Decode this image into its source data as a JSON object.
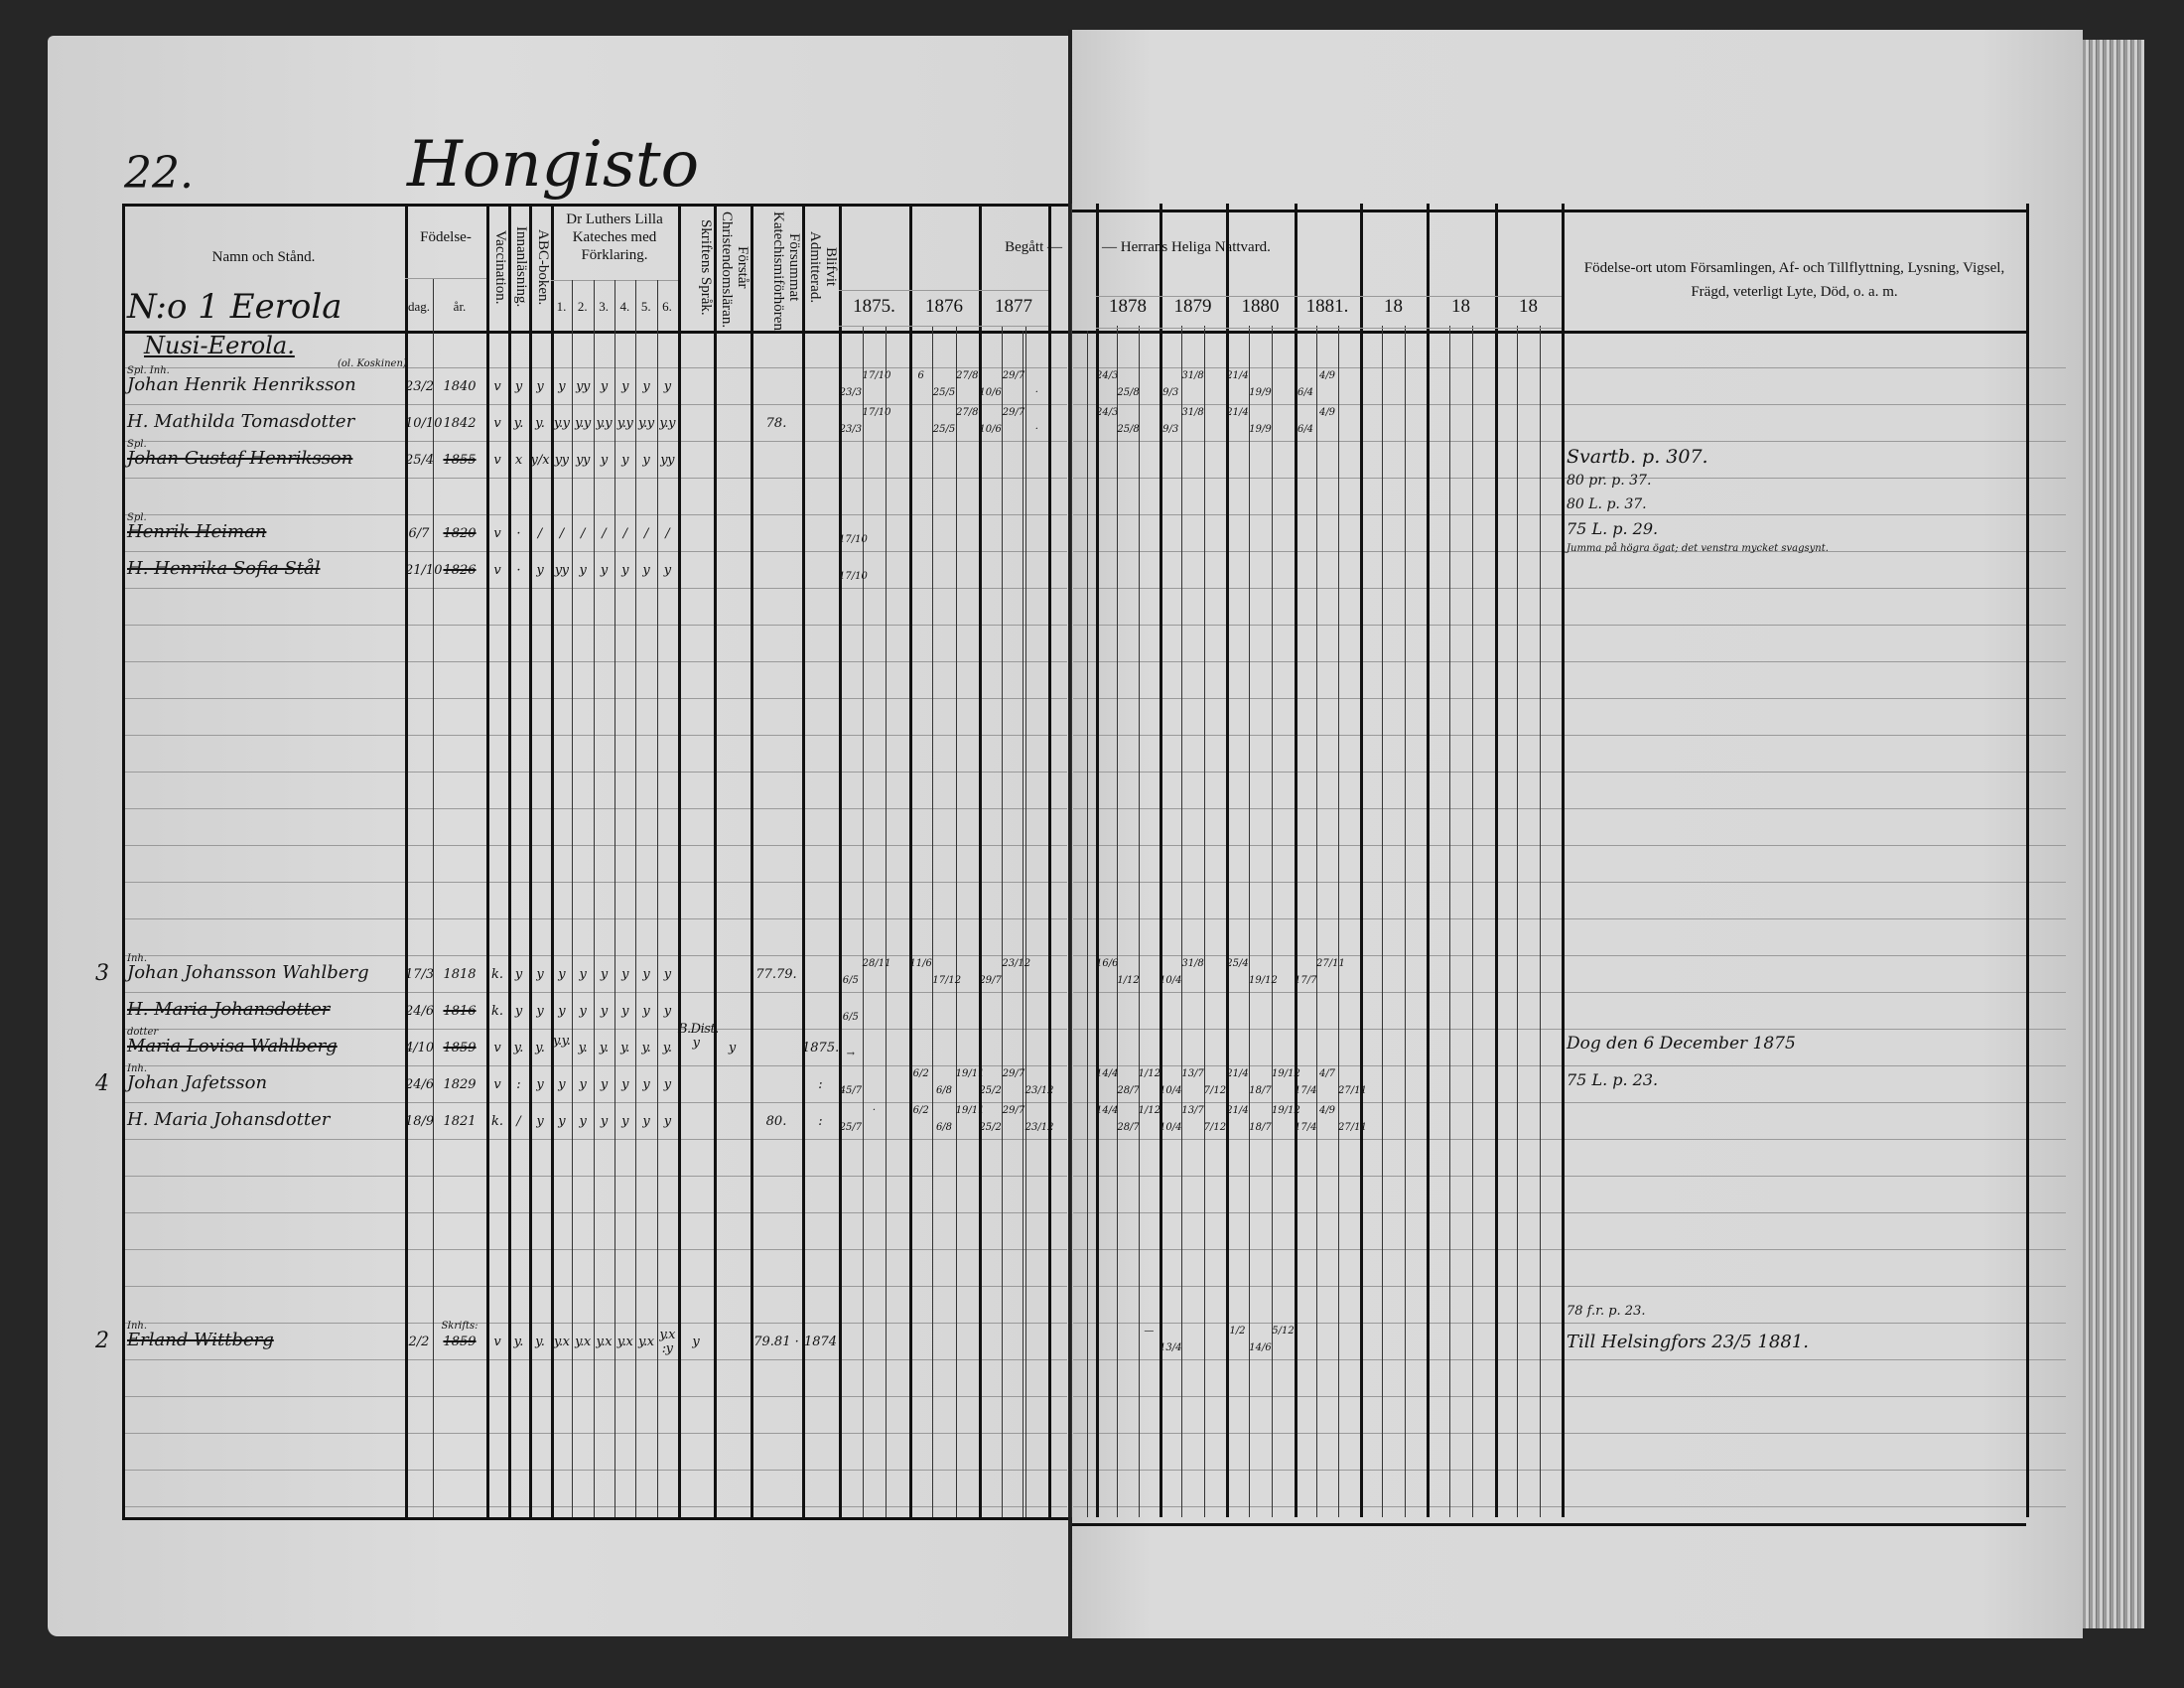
{
  "heading": {
    "page_number": "22.",
    "village": "Hongisto",
    "farm": "N:o 1 Eerola",
    "section": "Nusi-Eerola."
  },
  "columns": {
    "name": "Namn och Stånd.",
    "birth": "Födelse-",
    "birth_day": "dag.",
    "birth_year": "år.",
    "vaccination": "Vaccination.",
    "reading": "Innanläsning.",
    "abc": "ABC-boken.",
    "catechism": "Dr Luthers Lilla Kateches med Förklaring.",
    "catechism_parts": [
      "1.",
      "2.",
      "3.",
      "4.",
      "5.",
      "6."
    ],
    "scripture": "Skriftens Språk.",
    "understands": "Förstår Christendomsläran.",
    "missed": "Försummat Katechismiförhören.",
    "admitted": "Blifvit Admitterad.",
    "communion_left": "Begått —",
    "communion_right": "— Herrans Heliga Nattvard.",
    "years": [
      "1875.",
      "1876",
      "1877",
      "1878",
      "1879",
      "1880",
      "1881.",
      "18",
      "18",
      "18"
    ],
    "remarks": "Födelse-ort utom Församlingen, Af- och Tillflyttning, Lysning, Vigsel, Frägd, veterligt Lyte, Död, o. a. m."
  },
  "entries": [
    {
      "prefix": "Spl. Inh.",
      "name": "Johan Henrik Henriksson",
      "name_note": "(ol. Koskinen)",
      "margin_no": "",
      "struck": false,
      "dag": "23/2",
      "ar": "1840",
      "ar_note": "",
      "vaccination": "v",
      "reading": "y",
      "abc": "y",
      "luther": [
        "y",
        "yy",
        "y",
        "y",
        "y",
        "y"
      ],
      "scripture": "",
      "understands": "",
      "missed": "",
      "admitted": "",
      "communion": {
        "1875": [
          "23/3",
          "17/10",
          ""
        ],
        "1876": [
          "6",
          "25/5",
          "27/8"
        ],
        "1877": [
          "10/6",
          "29/7",
          "·"
        ],
        "1878": [
          "24/3",
          "25/8",
          ""
        ],
        "1879": [
          "9/3",
          "31/8",
          ""
        ],
        "1880": [
          "21/4",
          "19/9",
          ""
        ],
        "1881": [
          "6/4",
          "4/9",
          ""
        ]
      }
    },
    {
      "prefix": "",
      "name": "H. Mathilda Tomasdotter",
      "name_note": "",
      "margin_no": "",
      "struck": false,
      "dag": "10/10",
      "ar": "1842",
      "ar_note": "",
      "vaccination": "v",
      "reading": "y.",
      "abc": "y.",
      "luther": [
        "y.y",
        "y.y",
        "y.y",
        "y.y",
        "y.y",
        "y.y"
      ],
      "scripture": "",
      "understands": "",
      "missed": "78.",
      "admitted": "",
      "communion": {
        "1875": [
          "23/3",
          "17/10",
          ""
        ],
        "1876": [
          "",
          "25/5",
          "27/8"
        ],
        "1877": [
          "10/6",
          "29/7",
          "·"
        ],
        "1878": [
          "24/3",
          "25/8",
          ""
        ],
        "1879": [
          "9/3",
          "31/8",
          ""
        ],
        "1880": [
          "21/4",
          "19/9",
          ""
        ],
        "1881": [
          "6/4",
          "4/9",
          ""
        ]
      }
    },
    {
      "prefix": "Spl.",
      "name": "Johan Gustaf Henriksson",
      "name_note": "",
      "margin_no": "",
      "struck": true,
      "dag": "25/4",
      "ar": "1855",
      "ar_note": "",
      "vaccination": "v",
      "reading": "x",
      "abc": "y/x",
      "luther": [
        "yy",
        "yy",
        "y",
        "y",
        "y",
        "yy"
      ],
      "scripture": "",
      "understands": "",
      "missed": "",
      "admitted": "",
      "communion": {}
    },
    {
      "prefix": "Spl.",
      "name": "Henrik Heiman",
      "name_note": "",
      "margin_no": "",
      "struck": true,
      "dag": "6/7",
      "ar": "1820",
      "ar_note": "",
      "vaccination": "v",
      "reading": "·",
      "abc": "/",
      "luther": [
        "/",
        "/",
        "/",
        "/",
        "/",
        "/"
      ],
      "scripture": "",
      "understands": "",
      "missed": "",
      "admitted": "",
      "communion": {
        "1875": [
          "17/10",
          "",
          ""
        ]
      }
    },
    {
      "prefix": "",
      "name": "H. Henrika Sofia Stål",
      "name_note": "",
      "margin_no": "",
      "struck": true,
      "dag": "21/10",
      "ar": "1826",
      "ar_note": "",
      "vaccination": "v",
      "reading": "·",
      "abc": "y",
      "luther": [
        "yy",
        "y",
        "y",
        "y",
        "y",
        "y"
      ],
      "scripture": "",
      "understands": "",
      "missed": "",
      "admitted": "",
      "communion": {
        "1875": [
          "17/10",
          "",
          ""
        ]
      }
    },
    {
      "prefix": "Inh.",
      "name": "Johan Johansson Wahlberg",
      "name_note": "",
      "margin_no": "3",
      "struck": false,
      "dag": "17/3",
      "ar": "1818",
      "ar_note": "",
      "vaccination": "k.",
      "reading": "y",
      "abc": "y",
      "luther": [
        "y",
        "y",
        "y",
        "y",
        "y",
        "y"
      ],
      "scripture": "",
      "understands": "",
      "missed": "77.79.",
      "admitted": "",
      "communion": {
        "1875": [
          "6/5",
          "28/11",
          ""
        ],
        "1876": [
          "11/6",
          "17/12",
          ""
        ],
        "1877": [
          "29/7",
          "23/12",
          ""
        ],
        "1878": [
          "16/6",
          "1/12",
          ""
        ],
        "1879": [
          "10/4",
          "31/8",
          ""
        ],
        "1880": [
          "25/4",
          "19/12",
          ""
        ],
        "1881": [
          "17/7",
          "27/11",
          ""
        ]
      }
    },
    {
      "prefix": "",
      "name": "H. Maria Johansdotter",
      "name_note": "",
      "margin_no": "",
      "struck": true,
      "dag": "24/6",
      "ar": "1816",
      "ar_note": "",
      "vaccination": "k.",
      "reading": "y",
      "abc": "y",
      "luther": [
        "y",
        "y",
        "y",
        "y",
        "y",
        "y"
      ],
      "scripture": "",
      "understands": "",
      "missed": "",
      "admitted": "",
      "communion": {
        "1875": [
          "6/5",
          "",
          ""
        ]
      }
    },
    {
      "prefix": "dotter",
      "name": "Maria Lovisa Wahlberg",
      "name_note": "",
      "margin_no": "",
      "struck": true,
      "dag": "4/10",
      "ar": "1859",
      "ar_note": "",
      "vaccination": "v",
      "reading": "y.",
      "abc": "y.",
      "luther": [
        "y.y.",
        "y.",
        "y.",
        "y.",
        "y.",
        "y."
      ],
      "scripture": "B.Dist. y",
      "understands": "y",
      "missed": "",
      "admitted": "1875.",
      "communion": {
        "1875": [
          "→",
          "",
          ""
        ]
      }
    },
    {
      "prefix": "Inh.",
      "name": "Johan Jafetsson",
      "name_note": "",
      "margin_no": "4",
      "struck": false,
      "dag": "24/6",
      "ar": "1829",
      "ar_note": "",
      "vaccination": "v",
      "reading": ":",
      "abc": "y",
      "luther": [
        "y",
        "y",
        "y",
        "y",
        "y",
        "y"
      ],
      "scripture": "",
      "understands": "",
      "missed": "",
      "admitted": ":",
      "communion": {
        "1875": [
          "45/7",
          "",
          ""
        ],
        "1876": [
          "6/2",
          "6/8",
          "19/11"
        ],
        "1877": [
          "25/2",
          "29/7",
          "23/12"
        ],
        "1878": [
          "14/4",
          "28/7",
          "1/12"
        ],
        "1879": [
          "10/4",
          "13/7",
          "7/12"
        ],
        "1880": [
          "21/4",
          "18/7",
          "19/12"
        ],
        "1881": [
          "17/4",
          "4/7",
          "27/11"
        ]
      }
    },
    {
      "prefix": "",
      "name": "H. Maria Johansdotter",
      "name_note": "",
      "margin_no": "",
      "struck": false,
      "dag": "18/9",
      "ar": "1821",
      "ar_note": "",
      "vaccination": "k.",
      "reading": "/",
      "abc": "y",
      "luther": [
        "y",
        "y",
        "y",
        "y",
        "y",
        "y"
      ],
      "scripture": "",
      "understands": "",
      "missed": "80.",
      "admitted": ":",
      "communion": {
        "1875": [
          "25/7",
          "·",
          ""
        ],
        "1876": [
          "6/2",
          "6/8",
          "19/11"
        ],
        "1877": [
          "25/2",
          "29/7",
          "23/12"
        ],
        "1878": [
          "14/4",
          "28/7",
          "1/12"
        ],
        "1879": [
          "10/4",
          "13/7",
          "7/12"
        ],
        "1880": [
          "21/4",
          "18/7",
          "19/12"
        ],
        "1881": [
          "17/4",
          "4/9",
          "27/11"
        ]
      }
    },
    {
      "prefix": "Inh.",
      "name": "Erland Wittberg",
      "name_note": "",
      "margin_no": "2",
      "struck": true,
      "dag": "2/2",
      "ar": "1859",
      "ar_note": "Skrifts:",
      "vaccination": "v",
      "reading": "y.",
      "abc": "y.",
      "luther": [
        "y.x",
        "y.x",
        "y.x",
        "y.x",
        "y.x",
        "y.x :y"
      ],
      "scripture": "y",
      "understands": "",
      "missed": "79.81 ·",
      "admitted": "1874",
      "communion": {
        "1878": [
          "",
          "",
          "—"
        ],
        "1879": [
          "13/4",
          "",
          ""
        ],
        "1880": [
          "1/2",
          "14/6",
          "5/12"
        ]
      }
    }
  ],
  "remarks": [
    "Svartb. p. 307.",
    "80 pr. p. 37.",
    "80 L. p. 37.",
    "75 L. p. 29.",
    "Jumma på högra ögat; det venstra mycket svagsynt.",
    "Dog den 6 December 1875",
    "75 L. p. 23.",
    "78 f.r. p. 23.",
    "Till Helsingfors 23/5 1881."
  ]
}
